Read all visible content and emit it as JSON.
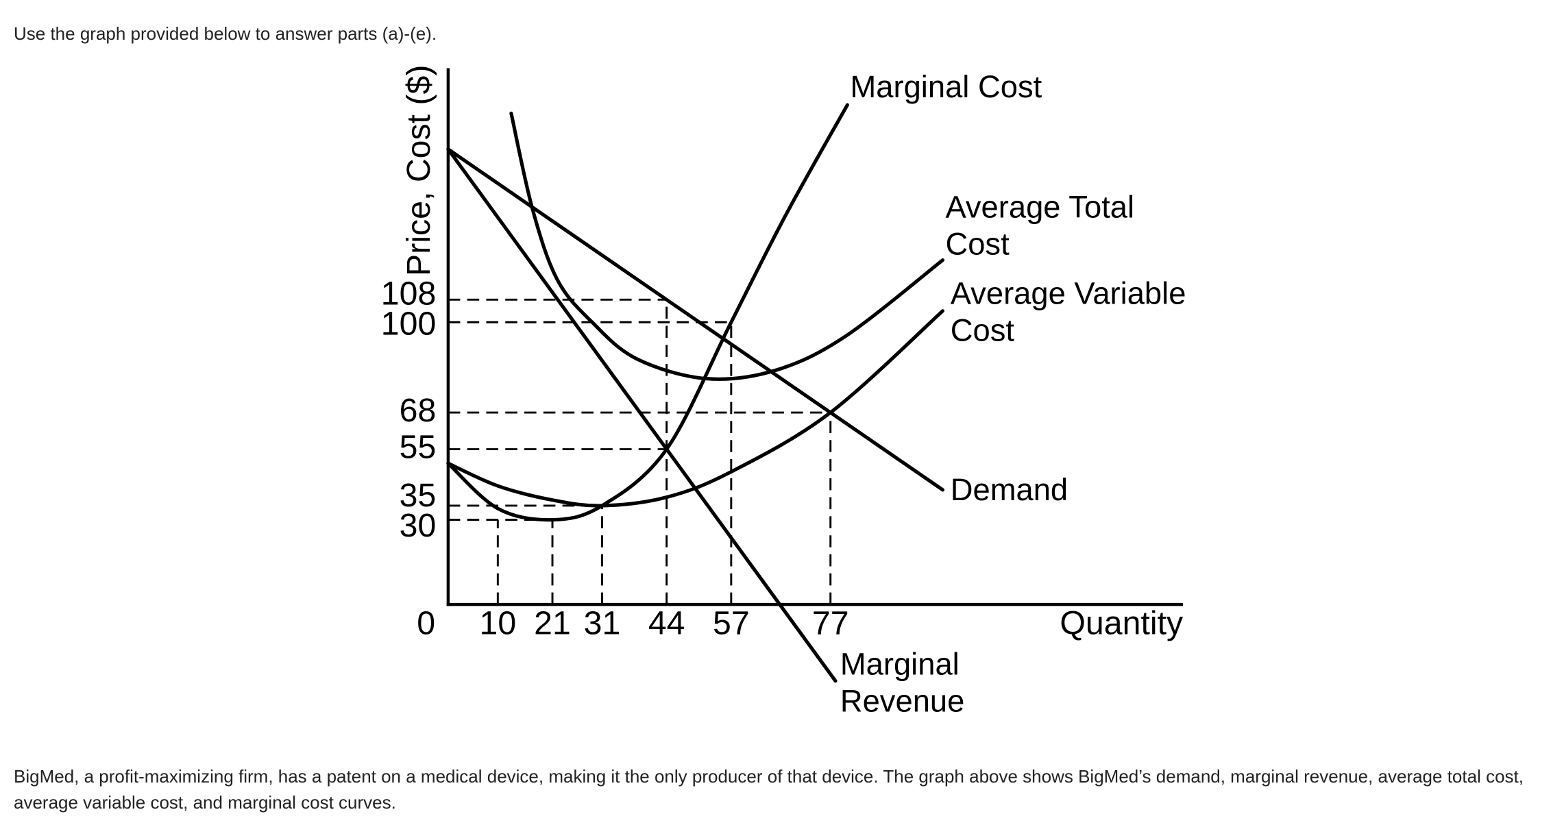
{
  "instruction": "Use the graph provided below to answer parts (a)-(e).",
  "chart_data": {
    "type": "line",
    "x_label": "Quantity",
    "y_label": "Price, Cost ($)",
    "xlim": [
      0,
      148
    ],
    "ylim": [
      0,
      190
    ],
    "xticks": [
      0,
      10,
      21,
      31,
      44,
      57,
      77
    ],
    "yticks": [
      30,
      35,
      55,
      68,
      100,
      108
    ],
    "series": [
      {
        "name": "Marginal Cost",
        "color": "#000000",
        "x": [
          0,
          10,
          21,
          31,
          44,
          57,
          68,
          80.4
        ],
        "values": [
          50,
          34,
          30,
          35,
          55,
          100,
          138,
          177
        ]
      },
      {
        "name": "Average Total Cost",
        "color": "#000000",
        "x": [
          12.7,
          17,
          22,
          29,
          38,
          52,
          66,
          80,
          99.6
        ],
        "values": [
          174,
          140,
          115,
          100,
          87,
          80,
          83,
          95,
          122
        ]
      },
      {
        "name": "Average Variable Cost",
        "color": "#000000",
        "x": [
          0,
          10,
          21,
          31,
          44,
          57,
          77,
          99.6
        ],
        "values": [
          50,
          42,
          37,
          35,
          38,
          47,
          68,
          104
        ]
      },
      {
        "name": "Demand",
        "color": "#000000",
        "x": [
          0,
          99.6
        ],
        "values": [
          161.3,
          40.6
        ]
      },
      {
        "name": "Marginal Revenue",
        "color": "#000000",
        "x": [
          0,
          78
        ],
        "values": [
          161.3,
          -27.1
        ]
      }
    ]
  },
  "description": "BigMed, a profit-maximizing firm, has a patent on a medical device, making it the only producer of that device. The graph above shows BigMed’s demand, marginal revenue, average total cost, average variable cost, and marginal cost curves."
}
